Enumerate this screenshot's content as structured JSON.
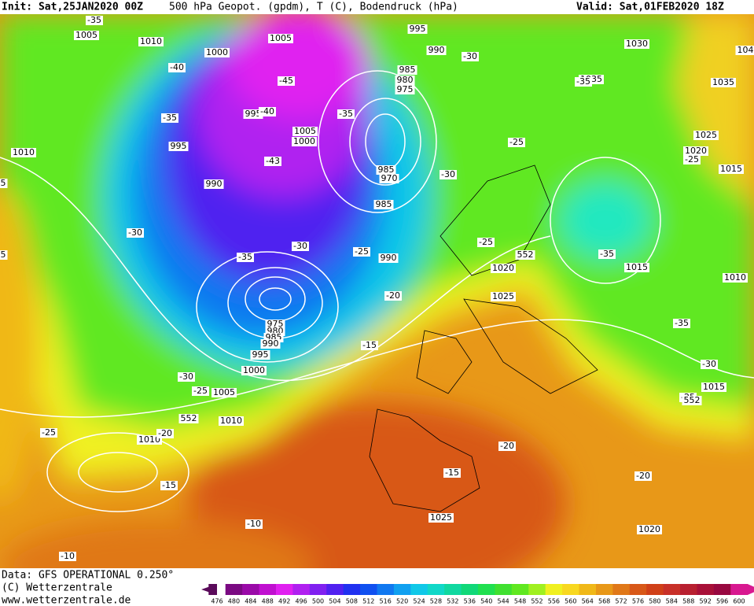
{
  "header": {
    "init": "Init: Sat,25JAN2020 00Z",
    "title": "500 hPa Geopot. (gpdm), T (C), Bodendruck (hPa)",
    "valid": "Valid: Sat,01FEB2020 18Z"
  },
  "map": {
    "pressure_labels": [
      1005,
      1010,
      1005,
      1000,
      995,
      990,
      985,
      980,
      975,
      1030,
      1035,
      1035,
      995,
      1005,
      1000,
      1025,
      1020,
      1015,
      1010,
      995,
      990,
      985,
      970,
      985,
      990,
      1020,
      1015,
      1010,
      1025,
      975,
      980,
      985,
      990,
      995,
      1000,
      1005,
      1010,
      1010,
      1015,
      1025,
      1020
    ],
    "temperature_labels": [
      "-35",
      "-40",
      "-45",
      "-40",
      "-43",
      "-35",
      "-35",
      "-30",
      "-35",
      "-25",
      "-25",
      "-30",
      "-30",
      "-35",
      "-30",
      "-25",
      "-25",
      "-35",
      "-20",
      "-15",
      "-35",
      "-30",
      "-25",
      "-30",
      "-25",
      "-25",
      "-20",
      "-15",
      "-20",
      "-15",
      "-20",
      "-10",
      "-10"
    ],
    "geopotential_labels": [
      "552",
      "552",
      "552"
    ],
    "edge_labels": [
      "104",
      "5",
      "5"
    ]
  },
  "footer": {
    "data": "Data: GFS OPERATIONAL 0.250°",
    "copyright": "(C) Wetterzentrale",
    "url": "www.wetterzentrale.de"
  },
  "colorbar": {
    "values": [
      476,
      480,
      484,
      488,
      492,
      496,
      500,
      504,
      508,
      512,
      516,
      520,
      524,
      528,
      532,
      536,
      540,
      544,
      548,
      552,
      556,
      560,
      564,
      568,
      572,
      576,
      580,
      584,
      588,
      592,
      596,
      600
    ],
    "colors": [
      "#5a0a5a",
      "#7a0a82",
      "#9a0aa8",
      "#c010d0",
      "#e020f0",
      "#b020f0",
      "#8020f0",
      "#5020f0",
      "#2030f0",
      "#1050f0",
      "#1078f0",
      "#10a0f0",
      "#10c8e8",
      "#10d8c8",
      "#10d8a0",
      "#10d878",
      "#20e050",
      "#40e030",
      "#60e820",
      "#a0f020",
      "#f0f020",
      "#f8d820",
      "#f0b818",
      "#e89818",
      "#e07818",
      "#d85818",
      "#d04018",
      "#c83028",
      "#b82030",
      "#a81038",
      "#980840",
      "#d81890"
    ]
  }
}
